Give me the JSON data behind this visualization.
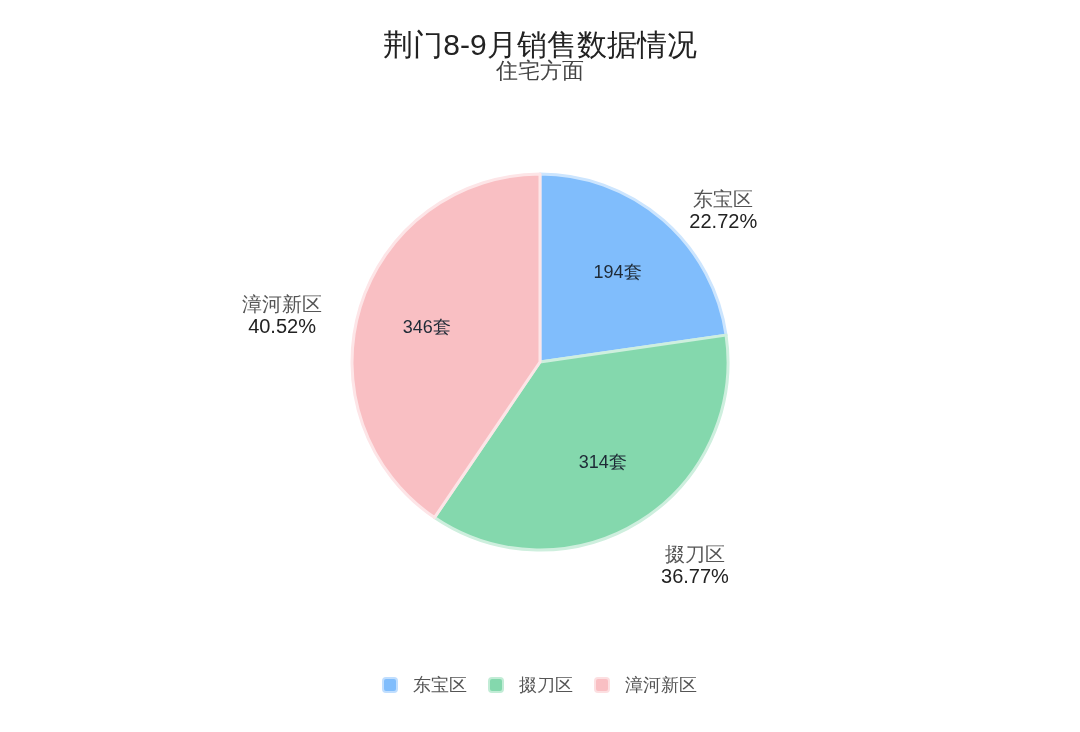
{
  "chart_data": {
    "type": "pie",
    "title": "荆门8-9月销售数据情况",
    "subtitle": "住宅方面",
    "categories": [
      "东宝区",
      "掇刀区",
      "漳河新区"
    ],
    "values": [
      194,
      314,
      346
    ],
    "colors": [
      "#80bdfc",
      "#84d8ad",
      "#f9bfc3"
    ],
    "value_labels": [
      "194套",
      "314套",
      "346套"
    ],
    "annotations": [
      "22.72%",
      "36.77%",
      "40.52%"
    ],
    "legend": "bottom"
  }
}
